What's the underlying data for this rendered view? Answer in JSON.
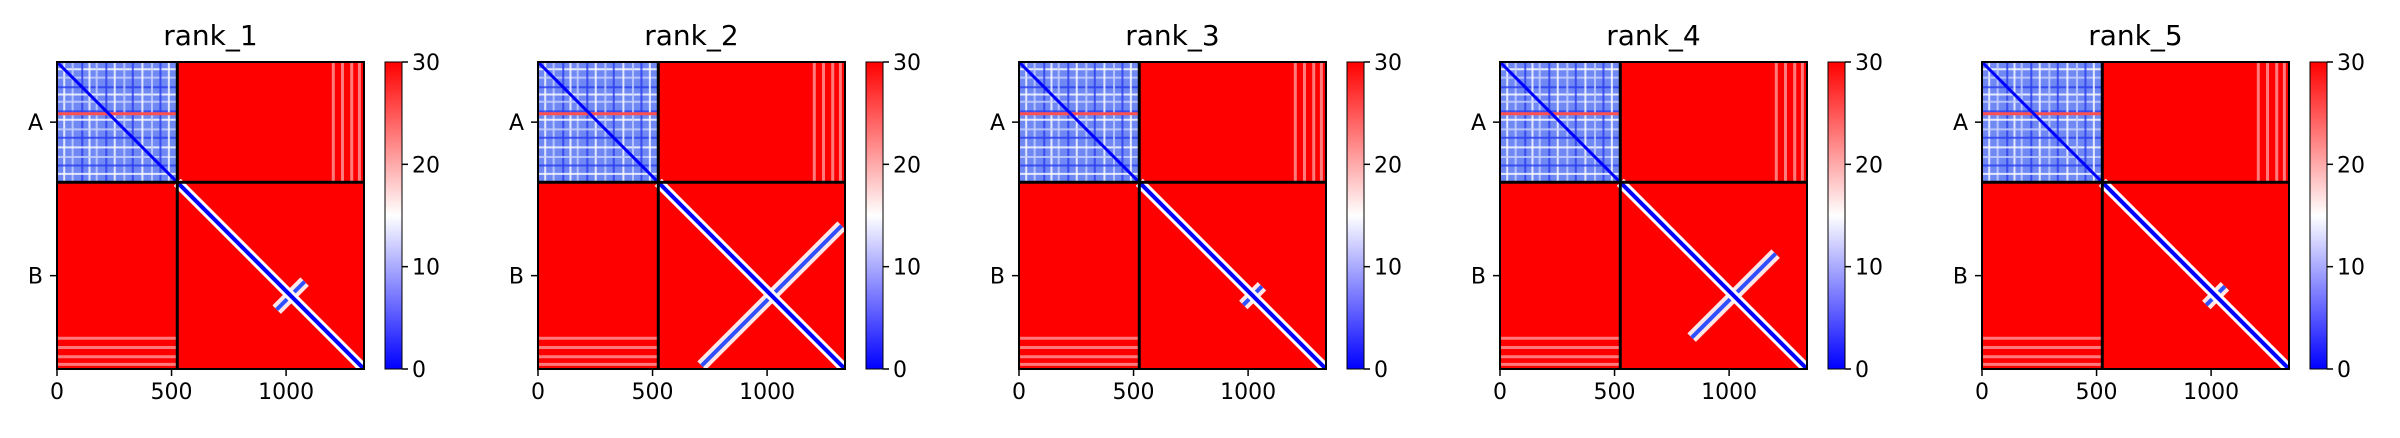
{
  "chart_data": [
    {
      "type": "heatmap",
      "title": "rank_1",
      "xlabel": "",
      "ylabel": "",
      "xlim": [
        0,
        1340
      ],
      "ylim": [
        1340,
        0
      ],
      "x_ticks": [
        0,
        500,
        1000
      ],
      "chain_boundary": 525,
      "y_category_labels": [
        "A",
        "B"
      ],
      "colormap": "bwr",
      "colorbar": {
        "vmin": 0,
        "vmax": 30,
        "ticks": [
          0,
          10,
          20,
          30
        ]
      },
      "features": {
        "cross_arm": 0.15
      }
    },
    {
      "type": "heatmap",
      "title": "rank_2",
      "xlabel": "",
      "ylabel": "",
      "xlim": [
        0,
        1340
      ],
      "ylim": [
        1340,
        0
      ],
      "x_ticks": [
        0,
        500,
        1000
      ],
      "chain_boundary": 525,
      "y_category_labels": [
        "A",
        "B"
      ],
      "colormap": "bwr",
      "colorbar": {
        "vmin": 0,
        "vmax": 30,
        "ticks": [
          0,
          10,
          20,
          30
        ]
      },
      "features": {
        "cross_arm": 0.75
      }
    },
    {
      "type": "heatmap",
      "title": "rank_3",
      "xlabel": "",
      "ylabel": "",
      "xlim": [
        0,
        1340
      ],
      "ylim": [
        1340,
        0
      ],
      "x_ticks": [
        0,
        500,
        1000
      ],
      "chain_boundary": 525,
      "y_category_labels": [
        "A",
        "B"
      ],
      "colormap": "bwr",
      "colorbar": {
        "vmin": 0,
        "vmax": 30,
        "ticks": [
          0,
          10,
          20,
          30
        ]
      },
      "features": {
        "cross_arm": 0.1
      }
    },
    {
      "type": "heatmap",
      "title": "rank_4",
      "xlabel": "",
      "ylabel": "",
      "xlim": [
        0,
        1340
      ],
      "ylim": [
        1340,
        0
      ],
      "x_ticks": [
        0,
        500,
        1000
      ],
      "chain_boundary": 525,
      "y_category_labels": [
        "A",
        "B"
      ],
      "colormap": "bwr",
      "colorbar": {
        "vmin": 0,
        "vmax": 30,
        "ticks": [
          0,
          10,
          20,
          30
        ]
      },
      "features": {
        "cross_arm": 0.45
      }
    },
    {
      "type": "heatmap",
      "title": "rank_5",
      "xlabel": "",
      "ylabel": "",
      "xlim": [
        0,
        1340
      ],
      "ylim": [
        1340,
        0
      ],
      "x_ticks": [
        0,
        500,
        1000
      ],
      "chain_boundary": 525,
      "y_category_labels": [
        "A",
        "B"
      ],
      "colormap": "bwr",
      "colorbar": {
        "vmin": 0,
        "vmax": 30,
        "ticks": [
          0,
          10,
          20,
          30
        ]
      },
      "features": {
        "cross_arm": 0.1
      }
    }
  ],
  "colors": {
    "high": "#ff0000",
    "mid": "#ffffff",
    "low": "#0000ff",
    "frame": "#000000"
  }
}
